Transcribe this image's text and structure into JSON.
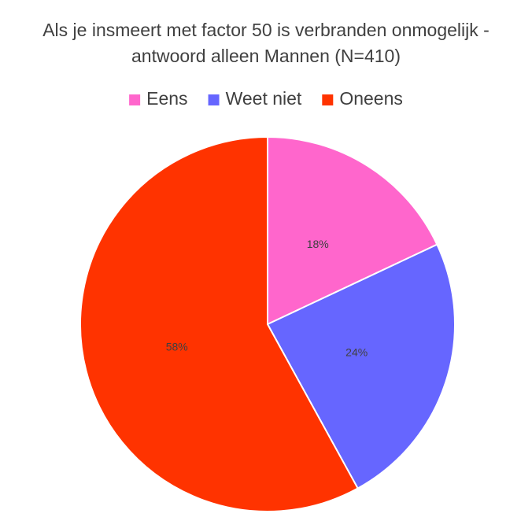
{
  "chart_data": {
    "type": "pie",
    "title": [
      "Als je insmeert met factor 50 is verbranden onmogelijk -",
      "antwoord alleen Mannen (N=410)"
    ],
    "categories": [
      "Eens",
      "Weet niet",
      "Oneens"
    ],
    "values": [
      18,
      24,
      58
    ],
    "value_labels": [
      "18%",
      "24%",
      "58%"
    ],
    "colors": [
      "#ff66cc",
      "#6666ff",
      "#ff3300"
    ],
    "legend": "top"
  }
}
